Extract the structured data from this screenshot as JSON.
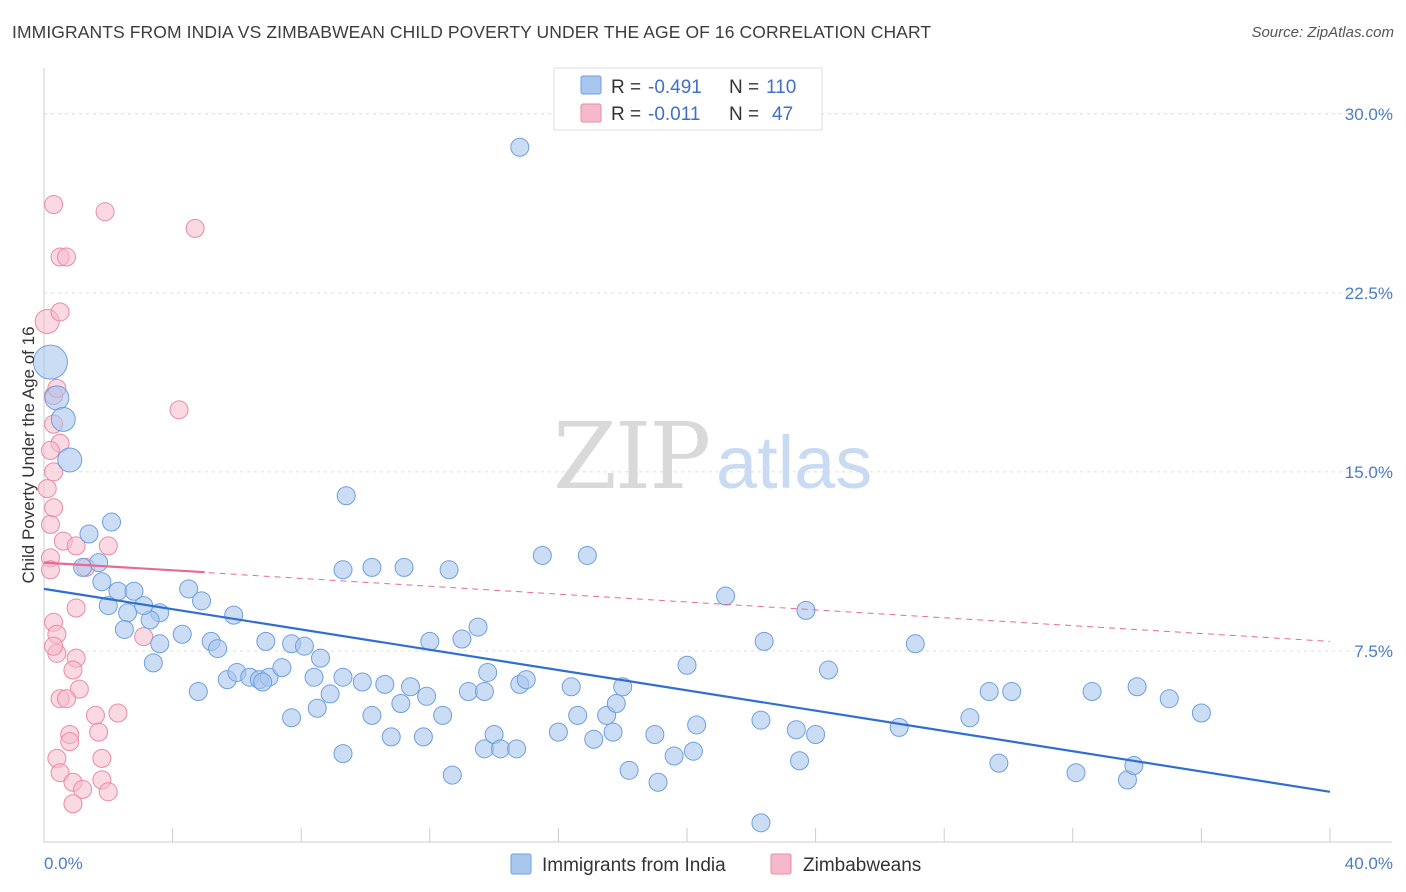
{
  "title": "IMMIGRANTS FROM INDIA VS ZIMBABWEAN CHILD POVERTY UNDER THE AGE OF 16 CORRELATION CHART",
  "source": "Source: ZipAtlas.com",
  "watermark": {
    "zip": "ZIP",
    "atlas": "atlas"
  },
  "legend": {
    "r_label": "R =",
    "n_label": "N =",
    "rows": [
      {
        "r": "-0.491",
        "n": "110"
      },
      {
        "r": "-0.011",
        "n": "47"
      }
    ]
  },
  "colors": {
    "india_fill": "#a9c6ee",
    "india_stroke": "#6f9fde",
    "india_line": "#2f6fd0",
    "zimb_fill": "#f6b9cc",
    "zimb_stroke": "#e98aa8",
    "zimb_line": "#e56b94",
    "tick_text": "#4a7cc4"
  },
  "chart_data": {
    "type": "scatter",
    "title": "IMMIGRANTS FROM INDIA VS ZIMBABWEAN CHILD POVERTY UNDER THE AGE OF 16 CORRELATION CHART",
    "xlabel": "",
    "ylabel": "Child Poverty Under the Age of 16",
    "xlim": [
      0,
      40
    ],
    "ylim": [
      0,
      31.5
    ],
    "x_tick_labels": [
      "0.0%",
      "40.0%"
    ],
    "y_ticks": [
      7.5,
      15.0,
      22.5,
      30.0
    ],
    "y_tick_labels": [
      "7.5%",
      "15.0%",
      "22.5%",
      "30.0%"
    ],
    "grid": "horizontal dashed",
    "legend_position": "top-center",
    "series": [
      {
        "name": "Immigrants from India",
        "trend": {
          "x": [
            0,
            40
          ],
          "y": [
            10.1,
            1.6
          ]
        },
        "points": [
          [
            0.2,
            19.6,
            3
          ],
          [
            0.4,
            18.1,
            2
          ],
          [
            0.6,
            17.2,
            2
          ],
          [
            0.8,
            15.5,
            2
          ],
          [
            14.8,
            28.6,
            1
          ],
          [
            1.4,
            12.4,
            1
          ],
          [
            2.1,
            12.9,
            1
          ],
          [
            1.7,
            11.2,
            1
          ],
          [
            1.2,
            11.0,
            1
          ],
          [
            1.8,
            10.4,
            1
          ],
          [
            2.3,
            10.0,
            1
          ],
          [
            2.8,
            10.0,
            1
          ],
          [
            3.6,
            9.1,
            1
          ],
          [
            4.5,
            10.1,
            1
          ],
          [
            4.9,
            9.6,
            1
          ],
          [
            3.3,
            8.8,
            1
          ],
          [
            2.6,
            9.1,
            1
          ],
          [
            3.6,
            7.8,
            1
          ],
          [
            4.3,
            8.2,
            1
          ],
          [
            5.2,
            7.9,
            1
          ],
          [
            5.4,
            7.6,
            1
          ],
          [
            5.9,
            9.0,
            1
          ],
          [
            3.4,
            7.0,
            1
          ],
          [
            4.8,
            5.8,
            1
          ],
          [
            5.7,
            6.3,
            1
          ],
          [
            6.0,
            6.6,
            1
          ],
          [
            6.4,
            6.4,
            1
          ],
          [
            6.7,
            6.3,
            1
          ],
          [
            7.0,
            6.4,
            1
          ],
          [
            7.4,
            6.8,
            1
          ],
          [
            6.9,
            7.9,
            1
          ],
          [
            7.7,
            7.8,
            1
          ],
          [
            8.1,
            7.7,
            1
          ],
          [
            8.4,
            6.4,
            1
          ],
          [
            8.6,
            7.2,
            1
          ],
          [
            7.7,
            4.7,
            1
          ],
          [
            8.5,
            5.1,
            1
          ],
          [
            8.9,
            5.7,
            1
          ],
          [
            9.3,
            6.4,
            1
          ],
          [
            9.9,
            6.2,
            1
          ],
          [
            10.6,
            6.1,
            1
          ],
          [
            10.2,
            4.8,
            1
          ],
          [
            11.1,
            5.3,
            1
          ],
          [
            11.4,
            6.0,
            1
          ],
          [
            11.9,
            5.6,
            1
          ],
          [
            12.4,
            4.8,
            1
          ],
          [
            13.2,
            5.8,
            1
          ],
          [
            13.7,
            5.8,
            1
          ],
          [
            13.8,
            6.6,
            1
          ],
          [
            14.8,
            6.1,
            1
          ],
          [
            15.0,
            6.3,
            1
          ],
          [
            13.0,
            8.0,
            1
          ],
          [
            12.0,
            7.9,
            1
          ],
          [
            13.5,
            8.5,
            1
          ],
          [
            9.3,
            3.2,
            1
          ],
          [
            10.8,
            3.9,
            1
          ],
          [
            11.8,
            3.9,
            1
          ],
          [
            12.7,
            2.3,
            1
          ],
          [
            13.7,
            3.4,
            1
          ],
          [
            14.0,
            4.0,
            1
          ],
          [
            14.2,
            3.4,
            1
          ],
          [
            14.7,
            3.4,
            1
          ],
          [
            16.0,
            4.1,
            1
          ],
          [
            16.6,
            4.8,
            1
          ],
          [
            16.4,
            6.0,
            1
          ],
          [
            17.1,
            3.8,
            1
          ],
          [
            17.5,
            4.8,
            1
          ],
          [
            17.8,
            5.3,
            1
          ],
          [
            18.0,
            6.0,
            1
          ],
          [
            17.7,
            4.1,
            1
          ],
          [
            18.2,
            2.5,
            1
          ],
          [
            19.0,
            4.0,
            1
          ],
          [
            19.1,
            2.0,
            1
          ],
          [
            19.6,
            3.1,
            1
          ],
          [
            20.2,
            3.3,
            1
          ],
          [
            20.3,
            4.4,
            1
          ],
          [
            15.5,
            11.5,
            1
          ],
          [
            16.9,
            11.5,
            1
          ],
          [
            12.6,
            10.9,
            1
          ],
          [
            11.2,
            11.0,
            1
          ],
          [
            10.2,
            11.0,
            1
          ],
          [
            9.3,
            10.9,
            1
          ],
          [
            9.4,
            14.0,
            1
          ],
          [
            21.2,
            9.8,
            1
          ],
          [
            23.7,
            9.2,
            1
          ],
          [
            22.4,
            7.9,
            1
          ],
          [
            24.4,
            6.7,
            1
          ],
          [
            22.3,
            4.6,
            1
          ],
          [
            23.4,
            4.2,
            1
          ],
          [
            24.0,
            4.0,
            1
          ],
          [
            23.5,
            2.9,
            1
          ],
          [
            22.3,
            0.3,
            1
          ],
          [
            27.1,
            7.8,
            1
          ],
          [
            26.6,
            4.3,
            1
          ],
          [
            28.8,
            4.7,
            1
          ],
          [
            29.4,
            5.8,
            1
          ],
          [
            30.1,
            5.8,
            1
          ],
          [
            29.7,
            2.8,
            1
          ],
          [
            32.6,
            5.8,
            1
          ],
          [
            34.0,
            6.0,
            1
          ],
          [
            35.0,
            5.5,
            1
          ],
          [
            36.0,
            4.9,
            1
          ],
          [
            32.1,
            2.4,
            1
          ],
          [
            33.7,
            2.1,
            1
          ],
          [
            33.9,
            2.7,
            1
          ],
          [
            2.0,
            9.4,
            1
          ],
          [
            3.1,
            9.4,
            1
          ],
          [
            2.5,
            8.4,
            1
          ],
          [
            6.8,
            6.2,
            1
          ],
          [
            20.0,
            6.9,
            1
          ]
        ]
      },
      {
        "name": "Zimbabweans",
        "trend": {
          "x": [
            0,
            5.0
          ],
          "y": [
            11.2,
            10.8
          ]
        },
        "trend_extended": {
          "x": [
            0,
            40
          ],
          "y": [
            11.2,
            7.9
          ]
        },
        "points": [
          [
            0.3,
            26.2,
            1
          ],
          [
            1.9,
            25.9,
            1
          ],
          [
            4.7,
            25.2,
            1
          ],
          [
            0.5,
            24.0,
            1
          ],
          [
            0.7,
            24.0,
            1
          ],
          [
            0.1,
            21.3,
            2
          ],
          [
            0.5,
            21.7,
            1
          ],
          [
            0.3,
            18.2,
            1
          ],
          [
            0.4,
            18.5,
            1
          ],
          [
            4.2,
            17.6,
            1
          ],
          [
            0.3,
            17.0,
            1
          ],
          [
            0.5,
            16.2,
            1
          ],
          [
            0.2,
            15.9,
            1
          ],
          [
            0.3,
            15.0,
            1
          ],
          [
            0.1,
            14.3,
            1
          ],
          [
            0.2,
            12.8,
            1
          ],
          [
            0.6,
            12.1,
            1
          ],
          [
            1.0,
            11.9,
            1
          ],
          [
            2.0,
            11.9,
            1
          ],
          [
            0.2,
            11.4,
            1
          ],
          [
            1.3,
            11.0,
            1
          ],
          [
            0.3,
            8.7,
            1
          ],
          [
            0.4,
            8.2,
            1
          ],
          [
            1.0,
            9.3,
            1
          ],
          [
            3.1,
            8.1,
            1
          ],
          [
            0.4,
            7.4,
            1
          ],
          [
            0.3,
            7.7,
            1
          ],
          [
            1.0,
            7.2,
            1
          ],
          [
            0.9,
            6.7,
            1
          ],
          [
            1.1,
            5.9,
            1
          ],
          [
            0.5,
            5.5,
            1
          ],
          [
            0.7,
            5.5,
            1
          ],
          [
            1.6,
            4.8,
            1
          ],
          [
            2.3,
            4.9,
            1
          ],
          [
            0.8,
            4.0,
            1
          ],
          [
            0.8,
            3.7,
            1
          ],
          [
            1.7,
            4.1,
            1
          ],
          [
            0.4,
            3.0,
            1
          ],
          [
            1.8,
            3.0,
            1
          ],
          [
            0.5,
            2.4,
            1
          ],
          [
            0.9,
            2.0,
            1
          ],
          [
            1.2,
            1.7,
            1
          ],
          [
            1.8,
            2.1,
            1
          ],
          [
            2.0,
            1.6,
            1
          ],
          [
            0.9,
            1.1,
            1
          ],
          [
            0.2,
            10.9,
            1
          ],
          [
            0.3,
            13.5,
            1
          ]
        ]
      }
    ],
    "legend_entries": [
      "Immigrants from India",
      "Zimbabweans"
    ]
  }
}
